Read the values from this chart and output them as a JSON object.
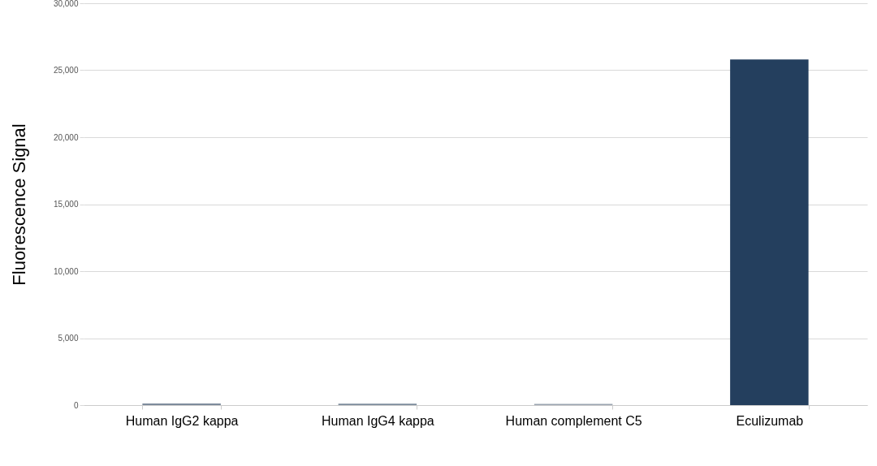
{
  "chart_data": {
    "type": "bar",
    "ylabel": "Fluorescence Signal",
    "categories": [
      "Human IgG2 kappa",
      "Human IgG4 kappa",
      "Human complement C5",
      "Eculizumab"
    ],
    "values": [
      120,
      110,
      90,
      25800
    ],
    "colors": [
      "#7d8b9c",
      "#7d8b9c",
      "#9aa4b0",
      "#243f5e"
    ],
    "ylim": [
      0,
      30000
    ],
    "yticks": [
      0,
      {
        "value": 5000,
        "label": "5,000"
      },
      {
        "value": 10000,
        "label": "10,000"
      },
      {
        "value": 15000,
        "label": "15,000"
      },
      {
        "value": 20000,
        "label": "20,000"
      },
      {
        "value": 25000,
        "label": "25,000"
      },
      {
        "value": 30000,
        "label": "30,000"
      }
    ],
    "grid": "y"
  }
}
